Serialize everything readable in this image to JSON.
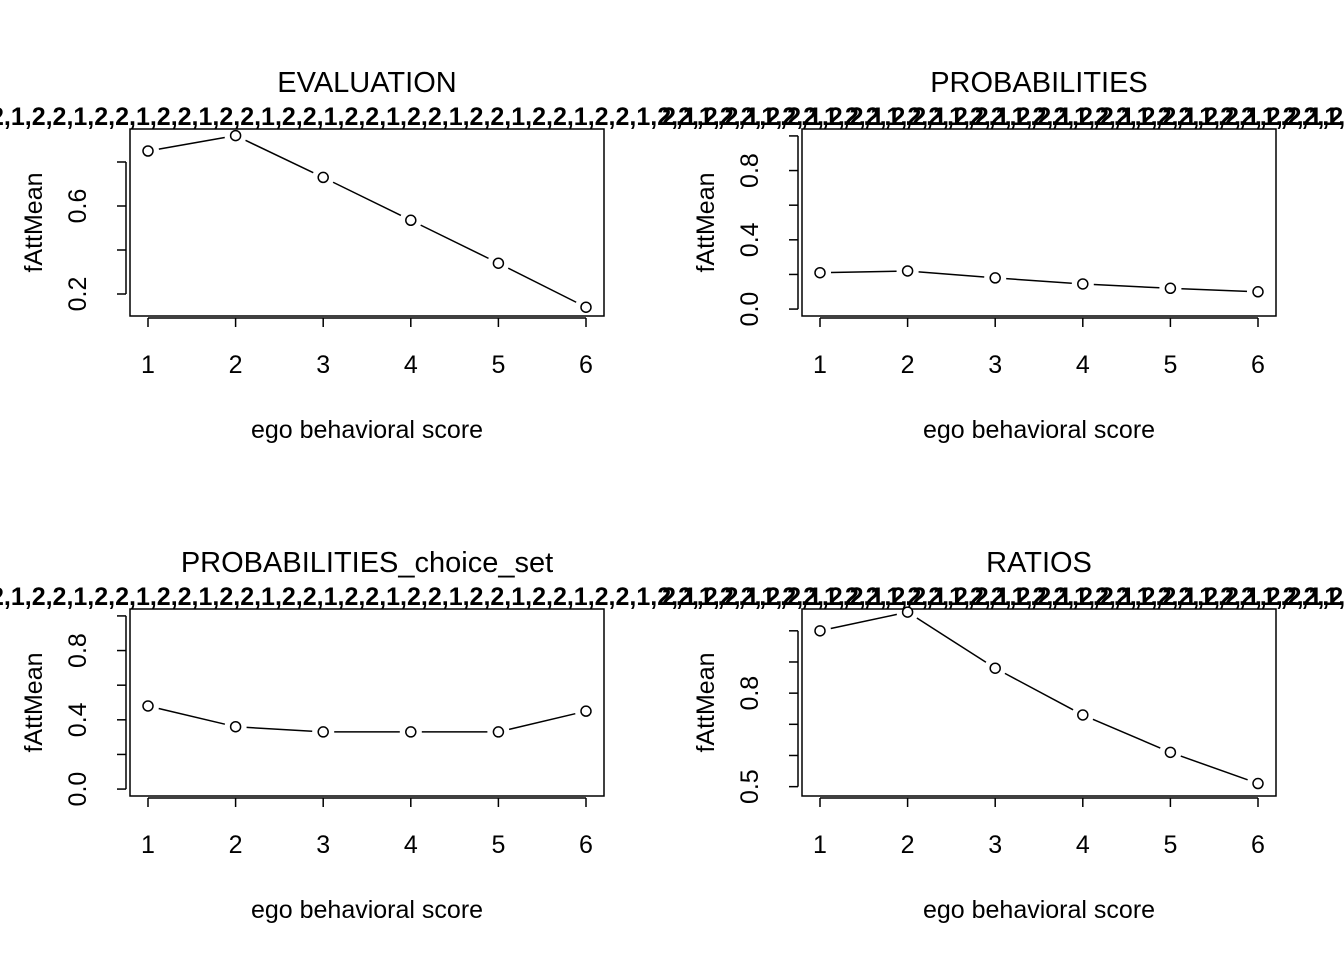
{
  "chart_data": [
    {
      "type": "line",
      "title": "EVALUATION",
      "xlabel": "ego behavioral score",
      "ylabel": "fAttMean",
      "x": [
        1,
        2,
        3,
        4,
        5,
        6
      ],
      "xticks": [
        "1",
        "2",
        "3",
        "4",
        "5",
        "6"
      ],
      "values": [
        0.85,
        0.92,
        0.73,
        0.535,
        0.34,
        0.14
      ],
      "ylim": [
        0.1,
        0.95
      ],
      "yticks": [
        0.2,
        0.6
      ],
      "yticklabels": [
        "0.2",
        "0.6"
      ],
      "yminor": [
        0.2,
        0.4,
        0.6,
        0.8
      ],
      "grid": false,
      "legend": "none"
    },
    {
      "type": "line",
      "title": "PROBABILITIES",
      "xlabel": "ego behavioral score",
      "ylabel": "fAttMean",
      "x": [
        1,
        2,
        3,
        4,
        5,
        6
      ],
      "xticks": [
        "1",
        "2",
        "3",
        "4",
        "5",
        "6"
      ],
      "values": [
        0.21,
        0.22,
        0.18,
        0.145,
        0.12,
        0.1
      ],
      "ylim": [
        -0.04,
        1.04
      ],
      "yticks": [
        0.0,
        0.4,
        0.8
      ],
      "yticklabels": [
        "0.0",
        "0.4",
        "0.8"
      ],
      "yminor": [
        0.0,
        0.2,
        0.4,
        0.6,
        0.8,
        1.0
      ],
      "grid": false,
      "legend": "none"
    },
    {
      "type": "line",
      "title": "PROBABILITIES_choice_set",
      "xlabel": "ego behavioral score",
      "ylabel": "fAttMean",
      "x": [
        1,
        2,
        3,
        4,
        5,
        6
      ],
      "xticks": [
        "1",
        "2",
        "3",
        "4",
        "5",
        "6"
      ],
      "values": [
        0.48,
        0.36,
        0.33,
        0.33,
        0.33,
        0.45
      ],
      "ylim": [
        -0.04,
        1.04
      ],
      "yticks": [
        0.0,
        0.4,
        0.8
      ],
      "yticklabels": [
        "0.0",
        "0.4",
        "0.8"
      ],
      "yminor": [
        0.0,
        0.2,
        0.4,
        0.6,
        0.8,
        1.0
      ],
      "grid": false,
      "legend": "none"
    },
    {
      "type": "line",
      "title": "RATIOS",
      "xlabel": "ego behavioral score",
      "ylabel": "fAttMean",
      "x": [
        1,
        2,
        3,
        4,
        5,
        6
      ],
      "xticks": [
        "1",
        "2",
        "3",
        "4",
        "5",
        "6"
      ],
      "values": [
        1.0,
        1.06,
        0.88,
        0.73,
        0.61,
        0.51
      ],
      "ylim": [
        0.47,
        1.07
      ],
      "yticks": [
        0.5,
        0.8
      ],
      "yticklabels": [
        "0.5",
        "0.8"
      ],
      "yminor": [
        0.5,
        0.6,
        0.7,
        0.8,
        0.9,
        1.0
      ],
      "grid": false,
      "legend": "none"
    }
  ],
  "overprint_text": "2,1,2,2,1,2,2,1,2,2,1,2,2,1,2,2,1,2,2,1,2,2,1,2,2,1,2,2,1,2,2,1,2,2,1,2,2,1,2,2,1,2,2,1,2,2,1,2,2,1,2,2,1,2,2,1,2,2,1,2,2,1,2,2,1,2,2,1,2,2,1,2,2,1,2,2,1,2"
}
